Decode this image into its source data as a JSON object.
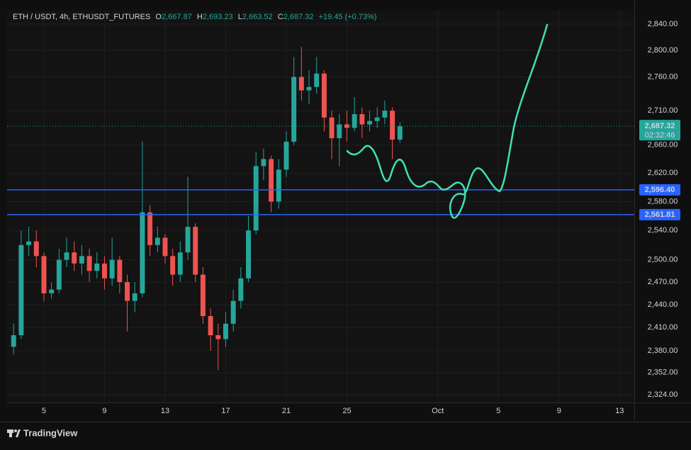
{
  "chart_data": {
    "type": "candlestick",
    "header": {
      "symbol": "ETH / USDT, 4h, ETHUSDT_FUTURES",
      "o_label": "O",
      "o": "2,667.87",
      "h_label": "H",
      "h": "2,693.23",
      "l_label": "L",
      "l": "2,663.52",
      "c_label": "C",
      "c": "2,687.32",
      "change": "+19.45 (+0.73%)"
    },
    "x": [
      3,
      3.5,
      4,
      4.5,
      5,
      5.5,
      6,
      6.5,
      7,
      7.5,
      8,
      8.5,
      9,
      9.5,
      10,
      10.5,
      11,
      11.5,
      12,
      12.5,
      13,
      13.5,
      14,
      14.5,
      15,
      15.5,
      16,
      16.5,
      17,
      17.5,
      18,
      18.5,
      19,
      19.5,
      20,
      20.5,
      21,
      21.5,
      22,
      22.5,
      23,
      23.5,
      24,
      24.5,
      25,
      25.5,
      26,
      26.5,
      27,
      27.5,
      28,
      28.5
    ],
    "open": [
      2385,
      2400,
      2520,
      2525,
      2505,
      2455,
      2460,
      2500,
      2510,
      2495,
      2505,
      2485,
      2495,
      2475,
      2500,
      2470,
      2445,
      2455,
      2565,
      2520,
      2530,
      2505,
      2480,
      2510,
      2545,
      2480,
      2425,
      2400,
      2395,
      2415,
      2445,
      2475,
      2540,
      2630,
      2640,
      2580,
      2625,
      2665,
      2760,
      2740,
      2745,
      2765,
      2700,
      2670,
      2690,
      2685,
      2705,
      2690,
      2695,
      2700,
      2710,
      2667.87
    ],
    "high": [
      2415,
      2540,
      2545,
      2540,
      2510,
      2470,
      2515,
      2530,
      2525,
      2520,
      2515,
      2510,
      2505,
      2530,
      2505,
      2480,
      2470,
      2665,
      2575,
      2545,
      2535,
      2515,
      2525,
      2615,
      2550,
      2490,
      2435,
      2415,
      2430,
      2460,
      2490,
      2560,
      2650,
      2655,
      2645,
      2640,
      2680,
      2790,
      2805,
      2770,
      2790,
      2770,
      2710,
      2705,
      2710,
      2730,
      2715,
      2710,
      2715,
      2725,
      2715,
      2693.23
    ],
    "low": [
      2375,
      2395,
      2505,
      2490,
      2445,
      2448,
      2455,
      2490,
      2485,
      2480,
      2470,
      2475,
      2460,
      2465,
      2455,
      2405,
      2430,
      2450,
      2505,
      2510,
      2495,
      2465,
      2470,
      2500,
      2470,
      2415,
      2380,
      2355,
      2385,
      2405,
      2435,
      2470,
      2535,
      2610,
      2565,
      2570,
      2615,
      2660,
      2725,
      2720,
      2735,
      2680,
      2640,
      2630,
      2665,
      2680,
      2670,
      2680,
      2685,
      2690,
      2640,
      2663.52
    ],
    "close": [
      2400,
      2520,
      2525,
      2505,
      2455,
      2460,
      2500,
      2510,
      2495,
      2505,
      2485,
      2495,
      2475,
      2500,
      2470,
      2445,
      2455,
      2565,
      2520,
      2530,
      2505,
      2480,
      2510,
      2545,
      2480,
      2425,
      2400,
      2395,
      2415,
      2445,
      2475,
      2540,
      2630,
      2640,
      2580,
      2625,
      2665,
      2760,
      2740,
      2745,
      2765,
      2700,
      2670,
      2690,
      2685,
      2705,
      2690,
      2695,
      2700,
      2710,
      2667.87,
      2687.32
    ],
    "up_color": "#26a69a",
    "down_color": "#ef5350",
    "xlim": [
      2.57,
      43.97
    ],
    "xticks": [
      5,
      9,
      13,
      17,
      21,
      25,
      {
        "value": 31,
        "label": "Oct"
      },
      {
        "value": 35,
        "label": "5"
      },
      {
        "value": 39,
        "label": "9"
      },
      {
        "value": 43,
        "label": "13"
      }
    ],
    "ylim": [
      2314.2,
      2860.8
    ],
    "log_scale": true,
    "grid": true,
    "yticks": [
      {
        "value": 2840,
        "label": "2,840.00"
      },
      {
        "value": 2800,
        "label": "2,800.00"
      },
      {
        "value": 2760,
        "label": "2,760.00"
      },
      {
        "value": 2710,
        "label": "2,710.00"
      },
      {
        "value": 2660,
        "label": "2,660.00"
      },
      {
        "value": 2620,
        "label": "2,620.00"
      },
      {
        "value": 2580,
        "label": "2,580.00"
      },
      {
        "value": 2540,
        "label": "2,540.00"
      },
      {
        "value": 2500,
        "label": "2,500.00"
      },
      {
        "value": 2470,
        "label": "2,470.00"
      },
      {
        "value": 2440,
        "label": "2,440.00"
      },
      {
        "value": 2410,
        "label": "2,410.00"
      },
      {
        "value": 2380,
        "label": "2,380.00"
      },
      {
        "value": 2352,
        "label": "2,352.00"
      },
      {
        "value": 2324,
        "label": "2,324.00"
      }
    ],
    "hlines": [
      {
        "value": 2596.4,
        "label": "2,596.40",
        "color": "#2962ff"
      },
      {
        "value": 2561.81,
        "label": "2,561.81",
        "color": "#2962ff"
      }
    ],
    "last_price": {
      "value": 2687.32,
      "label": "2,687.32",
      "countdown": "02:32:46",
      "color": "#26a69a"
    },
    "brand": "TradingView"
  }
}
